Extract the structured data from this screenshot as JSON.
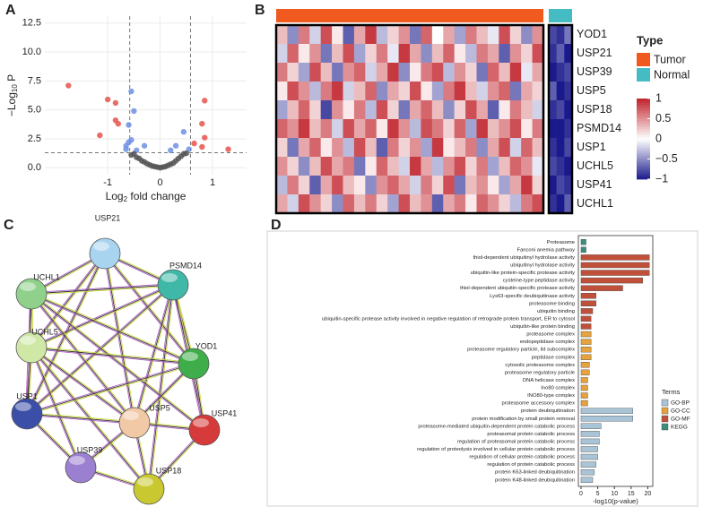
{
  "panel_labels": [
    "A",
    "B",
    "C",
    "D"
  ],
  "chart_data": [
    {
      "type": "scatter",
      "xlabel": {
        "pre": "Log",
        "sub": "2",
        "post": " fold change"
      },
      "ylabel": {
        "pre": "−Log",
        "sub": "10",
        "post": " P"
      },
      "xlim": [
        -2.2,
        1.65
      ],
      "ylim": [
        -0.6,
        13.1
      ],
      "xticks": [
        -1,
        0,
        1
      ],
      "yticks": [
        {
          "value": 0,
          "label": "0.0"
        },
        {
          "value": 2.5,
          "label": "2.5"
        },
        {
          "value": 5,
          "label": "5.0"
        },
        {
          "value": 7.5,
          "label": "7.5"
        },
        {
          "value": 10,
          "label": "10.0"
        },
        {
          "value": 12.5,
          "label": "12.5"
        }
      ],
      "grid": true,
      "vlines": [
        -0.58,
        0.58
      ],
      "hline": 1.3,
      "series": [
        {
          "color": "#e5534b",
          "x": [
            -1.75,
            -1.0,
            -0.85,
            -0.85,
            -0.8,
            -1.15,
            0.85,
            0.8,
            0.85,
            0.65,
            0.8,
            1.3
          ],
          "values": [
            7.1,
            5.9,
            5.6,
            4.1,
            3.8,
            2.8,
            5.8,
            3.8,
            2.6,
            2.1,
            1.8,
            1.6
          ]
        },
        {
          "color": "#6f91e3",
          "x": [
            -0.55,
            -0.5,
            -0.6,
            -0.55,
            -0.6,
            -0.65,
            -0.45,
            -0.3,
            0.3,
            0.45,
            0.55,
            0.2,
            -0.65
          ],
          "values": [
            6.6,
            4.9,
            3.7,
            2.4,
            2.2,
            1.9,
            1.5,
            1.9,
            1.9,
            3.1,
            1.6,
            1.5,
            1.6
          ]
        },
        {
          "color": "#555555",
          "x": [
            -0.5,
            -0.45,
            -0.4,
            -0.35,
            -0.3,
            -0.25,
            -0.2,
            -0.15,
            -0.1,
            -0.05,
            0,
            0.05,
            0.1,
            0.15,
            0.2,
            0.25,
            0.3,
            0.35,
            0.4,
            0.45,
            -0.55,
            0.5
          ],
          "values": [
            1.2,
            0.9,
            0.8,
            0.6,
            0.5,
            0.35,
            0.25,
            0.15,
            0.1,
            0.05,
            0,
            0.05,
            0.1,
            0.2,
            0.3,
            0.4,
            0.6,
            0.8,
            1.0,
            1.2,
            1.1,
            1.25
          ]
        }
      ]
    },
    {
      "type": "heatmap",
      "rows": [
        "YOD1",
        "USP21",
        "USP39",
        "USP5",
        "USP18",
        "PSMD14",
        "USP1",
        "UCHL5",
        "USP41",
        "UCHL1"
      ],
      "tumor": [
        [
          0.3,
          -0.5,
          0.6,
          -0.2,
          0.8,
          0.1,
          -0.7,
          0.4,
          0.9,
          -0.3,
          0.2,
          0.5,
          -0.6,
          0.7,
          0.0,
          0.4,
          -0.4,
          0.6,
          0.3,
          -0.1,
          0.8,
          0.2,
          -0.5,
          0.5
        ],
        [
          -0.2,
          0.7,
          0.1,
          0.5,
          -0.6,
          0.3,
          0.8,
          -0.4,
          0.2,
          0.6,
          -0.1,
          0.9,
          0.4,
          -0.5,
          0.3,
          0.7,
          0.1,
          -0.3,
          0.6,
          0.4,
          -0.7,
          0.5,
          0.2,
          0.8
        ],
        [
          0.6,
          0.2,
          -0.4,
          0.8,
          0.3,
          -0.6,
          0.5,
          0.7,
          -0.2,
          0.4,
          0.9,
          -0.5,
          0.1,
          0.6,
          0.8,
          -0.3,
          0.5,
          0.2,
          -0.6,
          0.7,
          0.3,
          0.9,
          -0.1,
          0.4
        ],
        [
          0.1,
          0.8,
          0.5,
          -0.3,
          0.6,
          0.9,
          -0.2,
          0.3,
          0.7,
          -0.5,
          0.4,
          0.2,
          0.8,
          0.1,
          -0.4,
          0.6,
          0.9,
          0.3,
          -0.2,
          0.5,
          0.7,
          -0.6,
          0.4,
          0.2
        ],
        [
          -0.4,
          0.3,
          0.7,
          0.2,
          -0.8,
          0.5,
          0.1,
          0.6,
          -0.3,
          0.8,
          0.2,
          -0.6,
          0.4,
          0.7,
          0.3,
          -0.5,
          0.2,
          0.8,
          0.4,
          -0.7,
          0.1,
          0.6,
          0.3,
          -0.2
        ],
        [
          0.7,
          0.5,
          0.9,
          0.3,
          0.6,
          -0.2,
          0.8,
          0.4,
          0.7,
          0.1,
          0.9,
          0.5,
          -0.3,
          0.8,
          0.6,
          0.2,
          0.7,
          -0.4,
          0.9,
          0.3,
          0.5,
          0.8,
          0.1,
          0.6
        ],
        [
          0.2,
          -0.6,
          0.4,
          0.7,
          0.1,
          0.5,
          -0.3,
          0.8,
          0.3,
          -0.7,
          0.6,
          0.2,
          0.5,
          -0.4,
          0.9,
          0.1,
          0.3,
          0.6,
          -0.5,
          0.4,
          0.8,
          -0.2,
          0.7,
          0.3
        ],
        [
          0.5,
          0.2,
          -0.5,
          0.3,
          0.8,
          0.4,
          0.6,
          -0.6,
          0.1,
          0.7,
          0.3,
          -0.2,
          0.9,
          0.4,
          -0.3,
          0.5,
          0.8,
          0.2,
          0.6,
          -0.4,
          0.3,
          0.7,
          0.5,
          -0.1
        ],
        [
          -0.3,
          0.6,
          0.2,
          -0.7,
          0.4,
          0.8,
          0.3,
          0.1,
          -0.5,
          0.5,
          0.7,
          0.4,
          -0.2,
          0.6,
          0.2,
          0.8,
          -0.6,
          0.3,
          0.5,
          0.1,
          -0.4,
          0.4,
          0.9,
          0.2
        ],
        [
          0.4,
          -0.2,
          0.8,
          0.5,
          0.2,
          -0.5,
          0.7,
          0.3,
          0.6,
          0.2,
          -0.4,
          0.8,
          0.3,
          0.5,
          -0.7,
          0.4,
          0.6,
          0.1,
          0.7,
          0.5,
          0.2,
          -0.3,
          0.6,
          0.8
        ]
      ],
      "normal": [
        [
          -0.8,
          -0.9,
          -0.6
        ],
        [
          -0.9,
          -0.7,
          -1
        ],
        [
          -1,
          -0.9,
          -0.8
        ],
        [
          -0.7,
          -1,
          -0.9
        ],
        [
          -0.9,
          -0.8,
          -1
        ],
        [
          -1,
          -1,
          -0.9
        ],
        [
          -0.9,
          -1,
          -0.8
        ],
        [
          -0.8,
          -0.9,
          -1
        ],
        [
          -1,
          -0.8,
          -0.9
        ],
        [
          -0.9,
          -1,
          -0.7
        ]
      ],
      "legend": {
        "title": "Type",
        "items": [
          {
            "name": "Tumor",
            "color": "#f05a1e"
          },
          {
            "name": "Normal",
            "color": "#45bcc4"
          }
        ]
      },
      "colorbar": {
        "lim": [
          -1,
          1
        ],
        "colors": [
          "#1a1a8c",
          "#ffffff",
          "#c0232b"
        ],
        "ticks": [
          1,
          0.5,
          0,
          {
            "value": -0.5,
            "label": "−0.5"
          },
          {
            "value": -1,
            "label": "−1"
          }
        ]
      }
    },
    {
      "type": "barh",
      "categories": [
        "Proteasome",
        "Fanconi anemia pathway",
        "thiol-dependent ubiquitinyl hydrolase activity",
        "ubiquitinyl hydrolase activity",
        "ubiquitin-like protein-specific protease activity",
        "cysteine-type peptidase activity",
        "thiol-dependent ubiquitin-specific protease activity",
        "Lys63-specific deubiquitinase activity",
        "proteasome binding",
        "ubiquitin binding",
        "ubiquitin-specific protease activity involved in negative regulation of retrograde protein transport, ER to cytosol",
        "ubiquitin-like protein binding",
        "proteasome complex",
        "endopeptidase complex",
        "proteasome regulatory particle, lid subcomplex",
        "peptidase complex",
        "cytosolic proteasome complex",
        "proteasome regulatory particle",
        "DNA helicase complex",
        "Ino80 complex",
        "INO80-type complex",
        "proteasome accessory complex",
        "protein deubiquitination",
        "protein modification by small protein removal",
        "proteasome-mediated ubiquitin-dependent protein catabolic process",
        "proteasomal protein catabolic process",
        "regulation of proteasomal protein catabolic process",
        "regulation of proteolysis involved in cellular protein catabolic process",
        "regulation of cellular protein catabolic process",
        "regulation of protein catabolic process",
        "protein K63-linked deubiquitination",
        "protein K48-linked deubiquitination"
      ],
      "values": [
        1.5,
        1.5,
        20.5,
        20.5,
        20.5,
        18.5,
        12.5,
        4.5,
        4.5,
        3.5,
        3,
        3,
        3,
        3,
        3,
        3,
        2.5,
        2.5,
        2,
        2,
        2,
        2,
        15.5,
        15.5,
        6,
        5.5,
        5.5,
        5,
        5,
        4.5,
        4,
        3.5
      ],
      "groups": [
        3,
        3,
        2,
        2,
        2,
        2,
        2,
        2,
        2,
        2,
        2,
        2,
        1,
        1,
        1,
        1,
        1,
        1,
        1,
        1,
        1,
        1,
        0,
        0,
        0,
        0,
        0,
        0,
        0,
        0,
        0,
        0
      ],
      "xlim": [
        -0.8,
        21.5
      ],
      "xticks": [
        0,
        5,
        10,
        15,
        20
      ],
      "xlabel": "-log10(p-value)",
      "legend": {
        "title": "Terms",
        "items": [
          {
            "name": "GO-BP",
            "color": "#a9c4d6"
          },
          {
            "name": "GO-CC",
            "color": "#e6a23c"
          },
          {
            "name": "GO-MF",
            "color": "#c0503a"
          },
          {
            "name": "KEGG",
            "color": "#3e8e7e"
          }
        ]
      }
    }
  ],
  "network": {
    "nodes": [
      "USP21",
      "PSMD14",
      "UCHL1",
      "UCHL5",
      "YOD1",
      "USP1",
      "USP5",
      "USP41",
      "USP39",
      "USP18"
    ]
  }
}
